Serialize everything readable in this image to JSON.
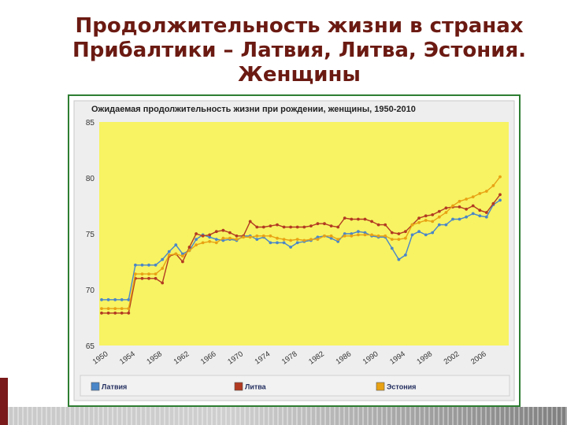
{
  "slide": {
    "title_lines": [
      "Продолжительность жизни в странах",
      "Прибалтики – Латвия, Литва, Эстония.",
      "Женщины"
    ]
  },
  "colors": {
    "plot_bg": "#f7f363",
    "frame": "#2e7d32",
    "title": "#6b1a12",
    "legend_bg": "#f2f2f2"
  },
  "chart_data": {
    "type": "line",
    "title": "Ожидаемая продолжительность жизни при рождении, женщины, 1950-2010",
    "xlabel": "",
    "ylabel": "",
    "ylim": [
      65,
      85
    ],
    "yticks": [
      65,
      70,
      75,
      80,
      85
    ],
    "xticks": [
      1950,
      1954,
      1958,
      1962,
      1966,
      1970,
      1974,
      1978,
      1982,
      1986,
      1990,
      1994,
      1998,
      2002,
      2006
    ],
    "grid": false,
    "legend_position": "bottom",
    "x": [
      1950,
      1951,
      1952,
      1953,
      1954,
      1955,
      1956,
      1957,
      1958,
      1959,
      1960,
      1961,
      1962,
      1963,
      1964,
      1965,
      1966,
      1967,
      1968,
      1969,
      1970,
      1971,
      1972,
      1973,
      1974,
      1975,
      1976,
      1977,
      1978,
      1979,
      1980,
      1981,
      1982,
      1983,
      1984,
      1985,
      1986,
      1987,
      1988,
      1989,
      1990,
      1991,
      1992,
      1993,
      1994,
      1995,
      1996,
      1997,
      1998,
      1999,
      2000,
      2001,
      2002,
      2003,
      2004,
      2005,
      2006,
      2007,
      2008,
      2009
    ],
    "series": [
      {
        "name": "Латвия",
        "color": "#4a86c8",
        "values": [
          69.1,
          69.1,
          69.1,
          69.1,
          69.1,
          72.2,
          72.2,
          72.2,
          72.2,
          72.7,
          73.4,
          74.0,
          73.2,
          73.5,
          74.5,
          74.9,
          74.7,
          74.5,
          74.4,
          74.5,
          74.4,
          74.8,
          74.8,
          74.5,
          74.7,
          74.2,
          74.2,
          74.2,
          73.8,
          74.2,
          74.3,
          74.4,
          74.7,
          74.8,
          74.6,
          74.3,
          75.0,
          75.0,
          75.2,
          75.1,
          74.8,
          74.7,
          74.7,
          73.7,
          72.7,
          73.1,
          74.9,
          75.2,
          74.9,
          75.1,
          75.8,
          75.8,
          76.3,
          76.3,
          76.5,
          76.8,
          76.6,
          76.5,
          77.6,
          78.0
        ]
      },
      {
        "name": "Литва",
        "color": "#b23a22",
        "values": [
          67.9,
          67.9,
          67.9,
          67.9,
          67.9,
          71.0,
          71.0,
          71.0,
          71.0,
          70.6,
          73.0,
          73.2,
          72.5,
          73.8,
          75.0,
          74.8,
          74.9,
          75.2,
          75.3,
          75.1,
          74.8,
          74.8,
          76.1,
          75.6,
          75.6,
          75.7,
          75.8,
          75.6,
          75.6,
          75.6,
          75.6,
          75.7,
          75.9,
          75.9,
          75.7,
          75.6,
          76.4,
          76.3,
          76.3,
          76.3,
          76.1,
          75.8,
          75.8,
          75.1,
          75.0,
          75.2,
          75.8,
          76.4,
          76.6,
          76.7,
          77.0,
          77.3,
          77.4,
          77.4,
          77.2,
          77.5,
          77.1,
          76.9,
          77.7,
          78.5
        ]
      },
      {
        "name": "Эстония",
        "color": "#e8a214",
        "values": [
          68.3,
          68.3,
          68.3,
          68.3,
          68.3,
          71.4,
          71.4,
          71.4,
          71.4,
          71.9,
          73.1,
          73.2,
          73.0,
          73.5,
          74.0,
          74.2,
          74.3,
          74.2,
          74.6,
          74.6,
          74.5,
          74.7,
          74.7,
          74.8,
          74.8,
          74.8,
          74.6,
          74.5,
          74.4,
          74.5,
          74.4,
          74.5,
          74.5,
          74.8,
          74.8,
          74.5,
          74.8,
          74.8,
          74.9,
          74.9,
          74.9,
          74.8,
          74.8,
          74.5,
          74.5,
          74.6,
          75.8,
          76.0,
          76.2,
          76.1,
          76.5,
          76.9,
          77.5,
          77.9,
          78.1,
          78.3,
          78.6,
          78.8,
          79.3,
          80.1
        ]
      }
    ]
  }
}
